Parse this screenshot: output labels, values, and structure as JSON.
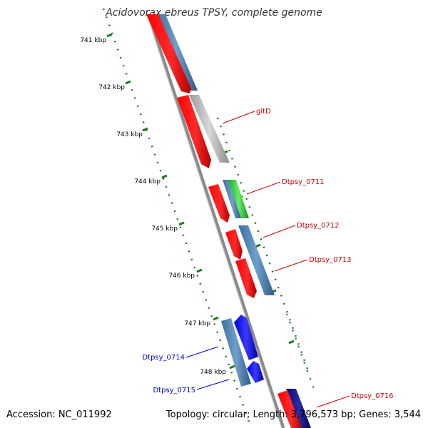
{
  "title": "Acidovorax ebreus TPSY, complete genome",
  "accession": "Accession: NC_011992",
  "summary": "Topology: circular; Length: 3,796,573 bp; Genes: 3,544",
  "scale_labels": [
    "741 kbp",
    "742 kbp",
    "743 kbp",
    "744 kbp",
    "745 kbp",
    "746 kbp",
    "747 kbp",
    "748 kbp"
  ],
  "gene_labels": [
    {
      "text": "gltD",
      "strand": "+"
    },
    {
      "text": "Dtpsy_0711",
      "strand": "+"
    },
    {
      "text": "Dtpsy_0712",
      "strand": "+"
    },
    {
      "text": "Dtpsy_0713",
      "strand": "+"
    },
    {
      "text": "Dtpsy_0714",
      "strand": "-"
    },
    {
      "text": "Dtpsy_0715",
      "strand": "-"
    },
    {
      "text": "Dtpsy_0716",
      "strand": "+"
    }
  ],
  "colors": {
    "forward_cds": "#ff0000",
    "reverse_cds": "#0000ee",
    "gene_feature": "#4a7fb0",
    "rna": "#33cc33",
    "backbone": "#888888",
    "scale": "#1e7a1e",
    "forward_label": "#cc0000",
    "reverse_label": "#0000cc"
  }
}
